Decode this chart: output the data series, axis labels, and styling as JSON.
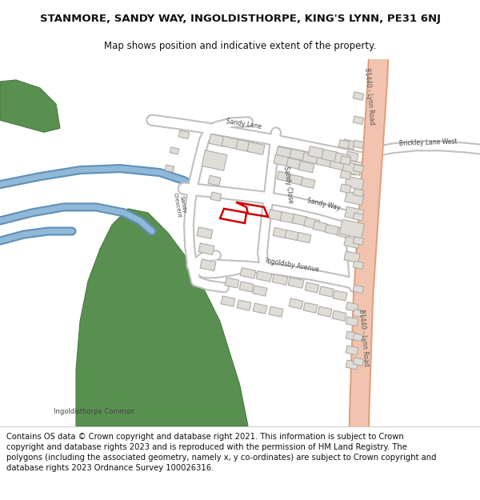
{
  "title_line1": "STANMORE, SANDY WAY, INGOLDISTHORPE, KING'S LYNN, PE31 6NJ",
  "title_line2": "Map shows position and indicative extent of the property.",
  "footer_text": "Contains OS data © Crown copyright and database right 2021. This information is subject to Crown copyright and database rights 2023 and is reproduced with the permission of HM Land Registry. The polygons (including the associated geometry, namely x, y co-ordinates) are subject to Crown copyright and database rights 2023 Ordnance Survey 100026316.",
  "map_bg": "#f8f8f6",
  "road_color": "#ffffff",
  "road_edge_color": "#c8c8c8",
  "major_road_color": "#f2c4b0",
  "major_road_edge": "#e0a080",
  "building_fill": "#e0ddd8",
  "building_edge": "#b0aca4",
  "green_fill": "#5a8f52",
  "green_edge": "#4a7a42",
  "plot_edge": "#cc0000",
  "blue_color": "#90b8d8",
  "blue_edge": "#6090b8",
  "footer_bg": "#ffffff",
  "title_fontsize": 9.5,
  "footer_fontsize": 7.2
}
